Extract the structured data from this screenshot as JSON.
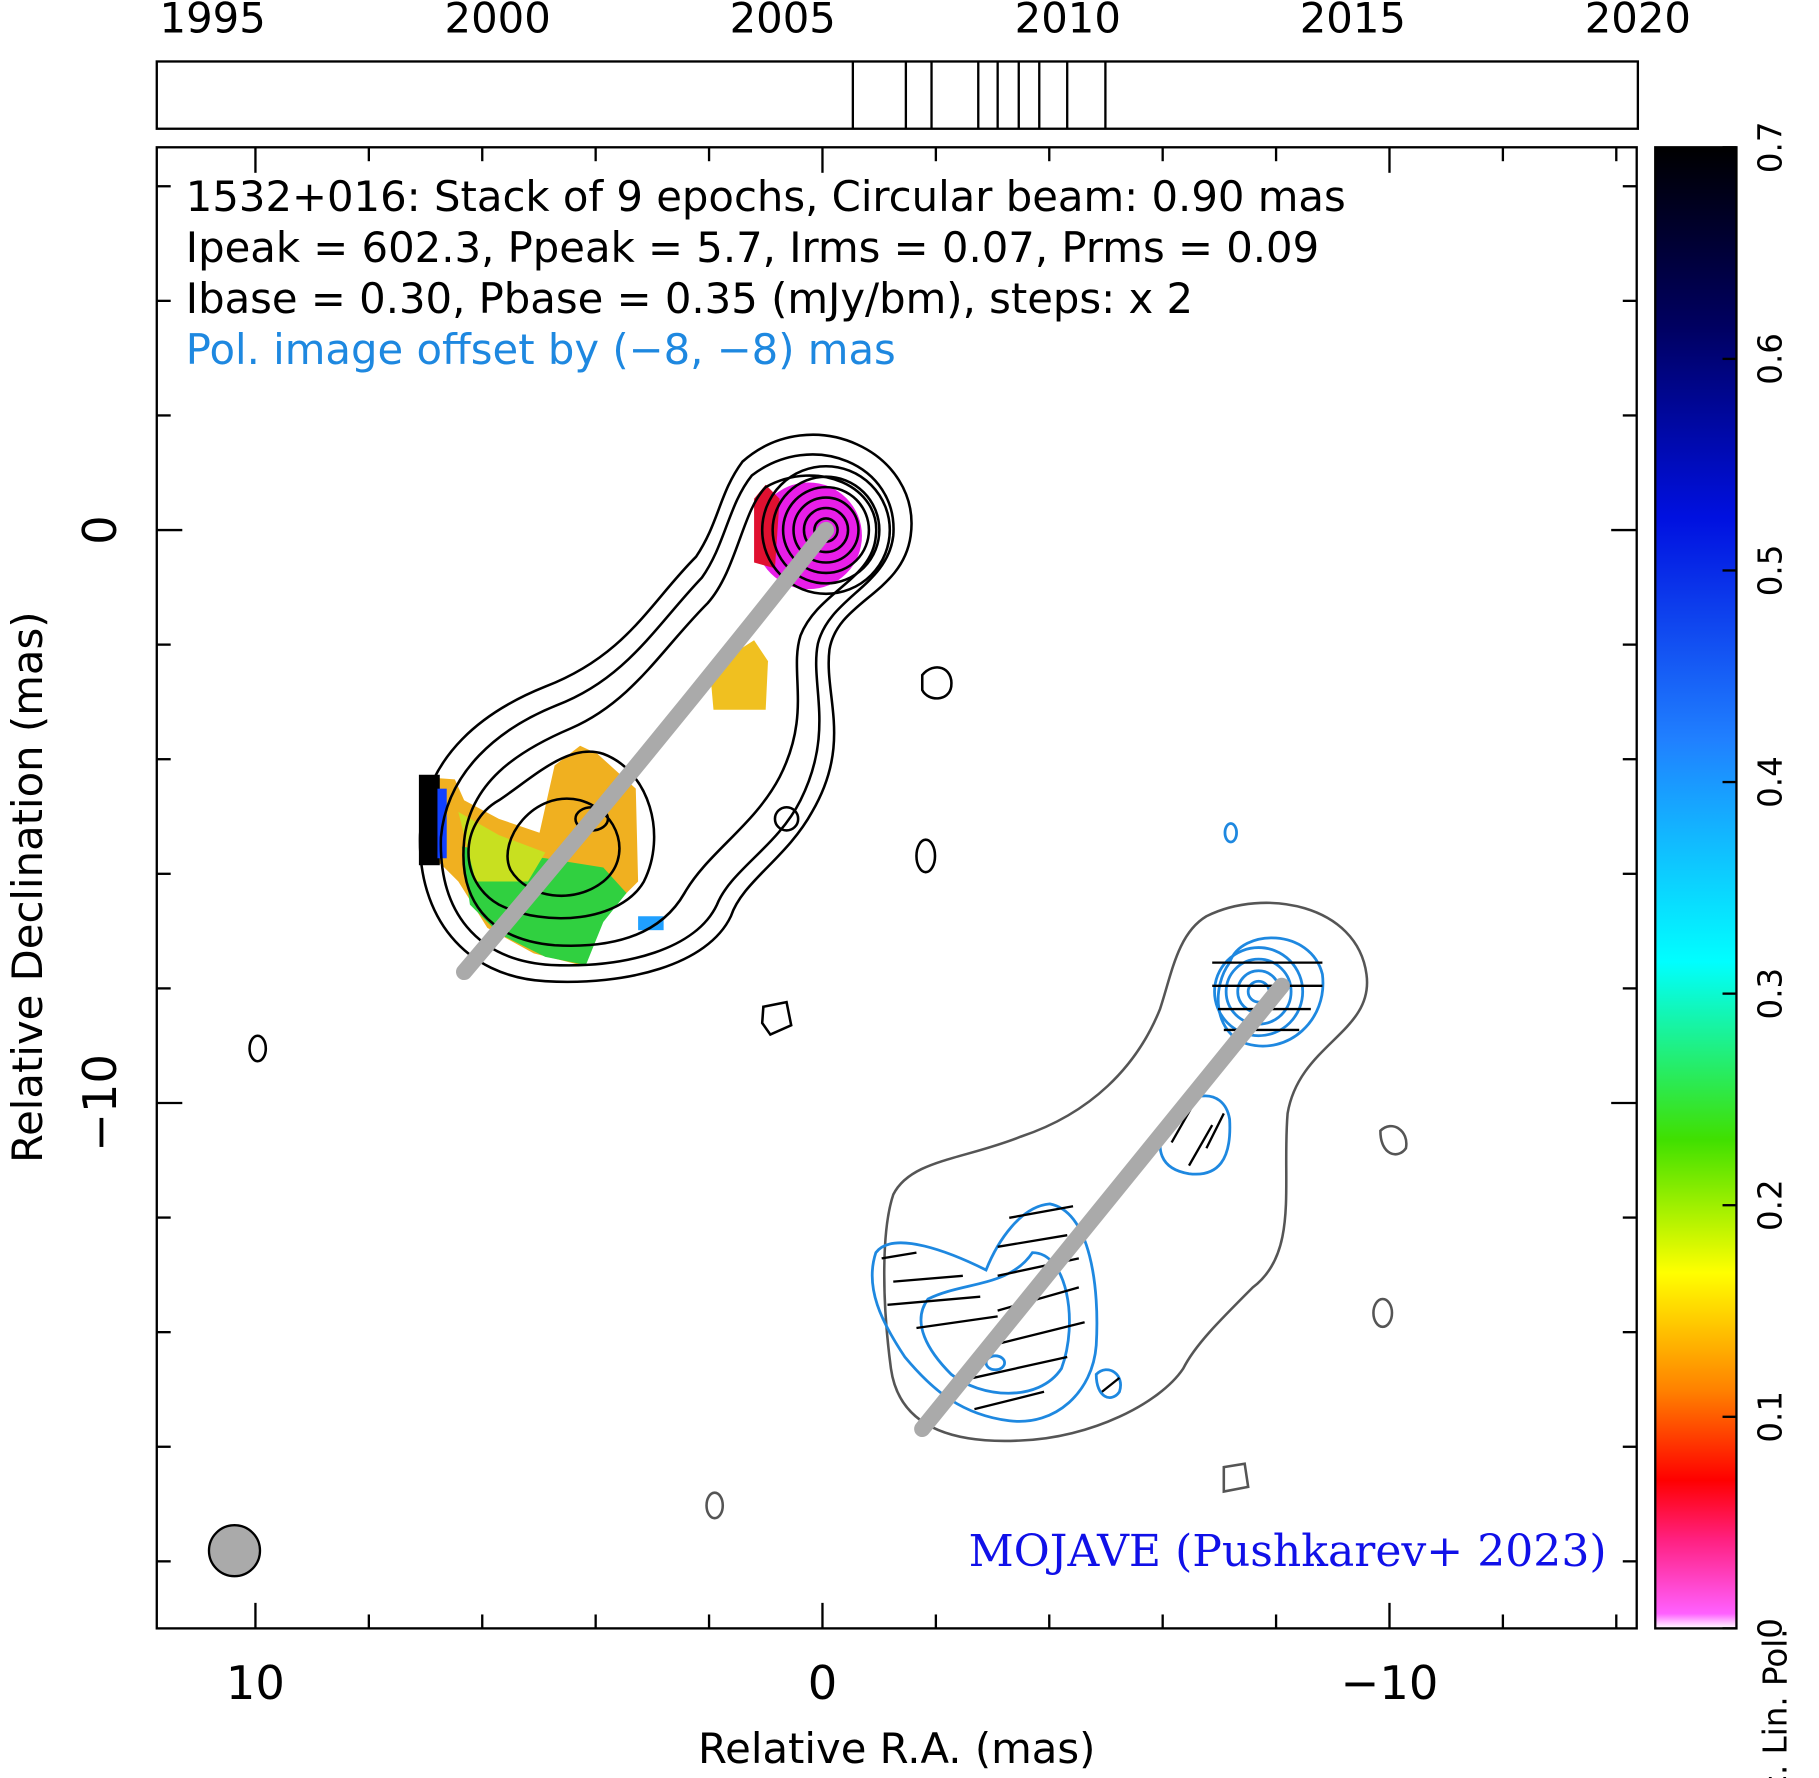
{
  "chart_data": [
    {
      "type": "timeline",
      "xlim": [
        1994.02,
        2020
      ],
      "xticks": [
        1995,
        2000,
        2005,
        2010,
        2015,
        2020
      ],
      "epochs": [
        2006.23,
        2007.16,
        2007.61,
        2008.43,
        2008.77,
        2009.14,
        2009.5,
        2009.99,
        2010.66
      ]
    },
    {
      "type": "map",
      "annotations": [
        "1532+016: Stack of 9 epochs, Circular beam: 0.90 mas",
        "Ipeak = 602.3, Ppeak = 5.7, Irms = 0.07, Prms = 0.09",
        "Ibase = 0.30, Pbase = 0.35 (mJy/bm), steps: x 2",
        "Pol. image offset by (−8, −8) mas"
      ],
      "credit": "MOJAVE (Pushkarev+ 2023)",
      "x_label": "Relative R.A. (mas)",
      "y_label": "Relative Declination (mas)",
      "xlim": [
        11.74,
        -14.36
      ],
      "ylim": [
        -19.17,
        6.68
      ],
      "xticks": [
        10,
        0,
        {
          "value": -10,
          "label": "−10"
        }
      ],
      "yticks": [
        0,
        {
          "value": -10,
          "label": "−10"
        }
      ],
      "xminor": [
        10,
        8,
        6,
        4,
        2,
        0,
        -2,
        -4,
        -6,
        -8,
        -10,
        -12,
        -14
      ],
      "yminor": [
        6,
        4,
        2,
        0,
        -2,
        -4,
        -6,
        -8,
        -10,
        -12,
        -14,
        -16,
        -18
      ],
      "colorbar": {
        "label": "Frac. Lin. Pol.",
        "lim": [
          0,
          0.7
        ],
        "ticks": [
          0,
          0.1,
          0.2,
          0.3,
          0.4,
          0.5,
          0.6,
          0.7
        ]
      }
    }
  ]
}
